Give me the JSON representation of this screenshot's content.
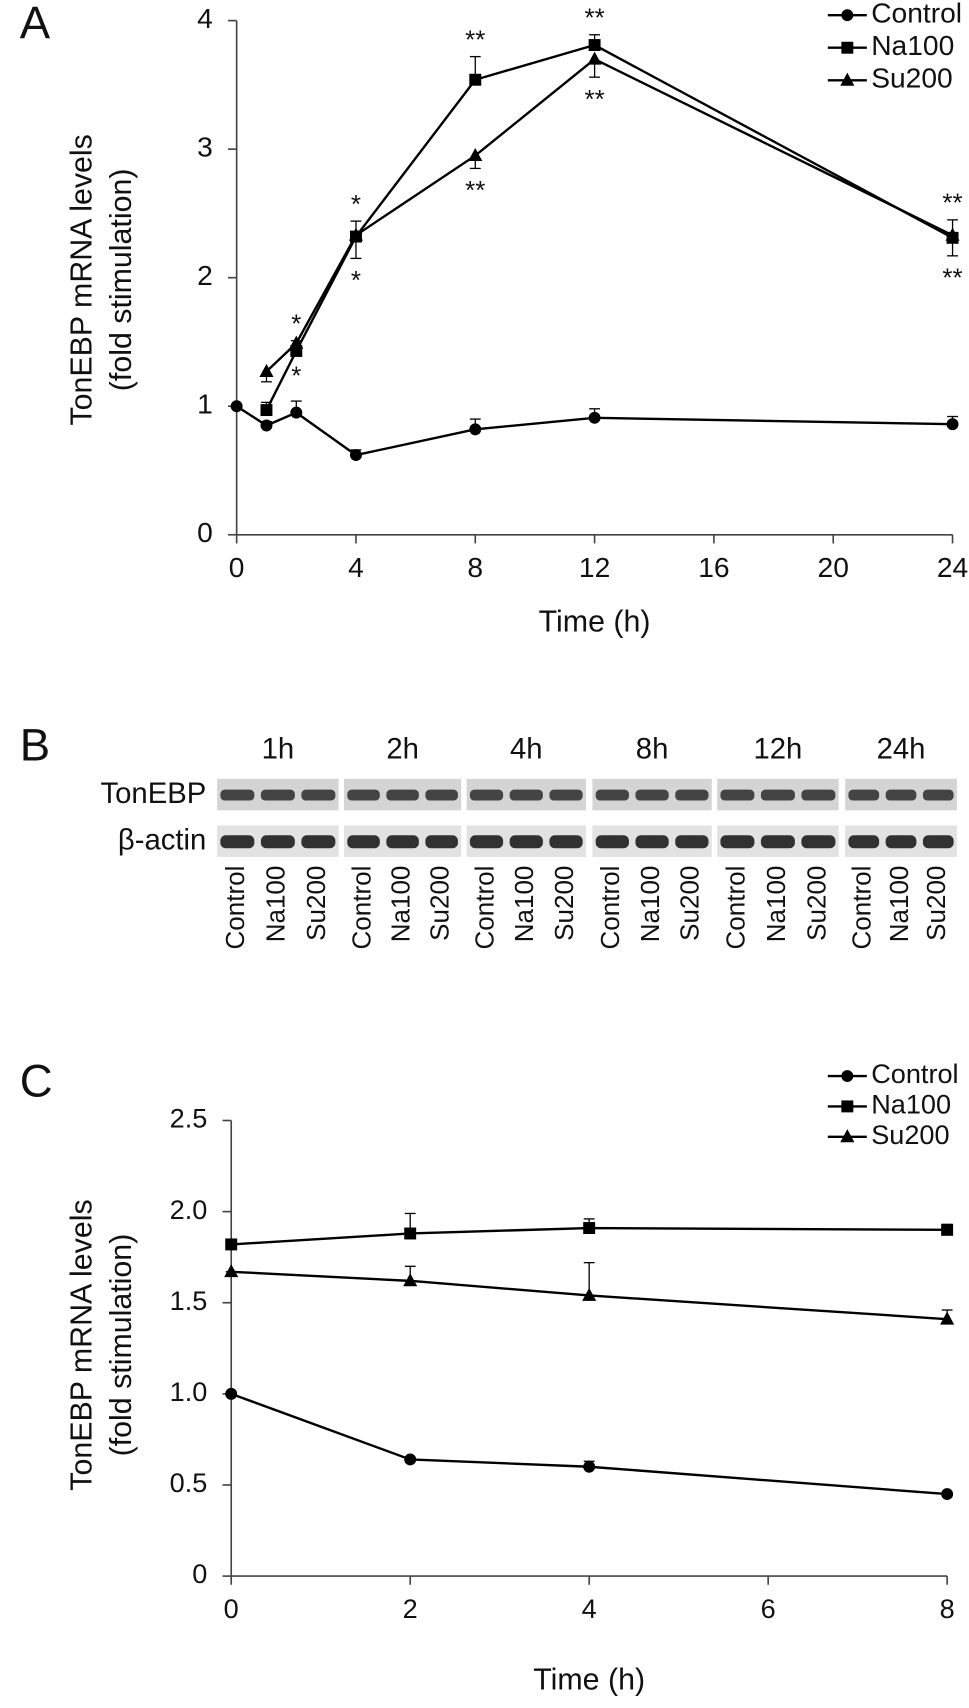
{
  "chart_data": [
    {
      "type": "line",
      "panel_label": "A",
      "x_label": "Time (h)",
      "y_label": [
        "TonEBP mRNA levels",
        "(fold stimulation)"
      ],
      "xlim": [
        0,
        24
      ],
      "ylim": [
        0,
        4
      ],
      "xticks": [
        0,
        4,
        8,
        12,
        16,
        20,
        24
      ],
      "yticks": [
        0,
        1,
        2,
        3,
        4
      ],
      "legend": "top-right",
      "series": [
        {
          "name": "Control",
          "color": "#000000",
          "marker": "circle",
          "x": [
            0,
            1,
            2,
            4,
            8,
            12,
            24
          ],
          "values": [
            1.0,
            0.85,
            0.95,
            0.62,
            0.82,
            0.91,
            0.86
          ],
          "errors": [
            0,
            0.03,
            0.09,
            0.04,
            0.08,
            0.07,
            0.06
          ],
          "error_side": "up",
          "point_labels": [
            null,
            null,
            null,
            null,
            null,
            null,
            null
          ],
          "label_side": "above"
        },
        {
          "name": "Na100",
          "color": "#000000",
          "marker": "square",
          "x": [
            1,
            2,
            4,
            8,
            12,
            24
          ],
          "values": [
            0.97,
            1.43,
            2.32,
            3.54,
            3.81,
            2.31
          ],
          "errors": [
            0.06,
            0.08,
            0.12,
            0.18,
            0.08,
            0.14
          ],
          "error_side": "up",
          "point_labels": [
            null,
            "*",
            "*",
            "**",
            "**",
            "**"
          ],
          "label_side": "above"
        },
        {
          "name": "Su200",
          "color": "#000000",
          "marker": "triangle",
          "x": [
            1,
            2,
            4,
            8,
            12,
            24
          ],
          "values": [
            1.27,
            1.49,
            2.33,
            2.95,
            3.7,
            2.33
          ],
          "errors": [
            0.08,
            0.08,
            0.18,
            0.1,
            0.14,
            0.16
          ],
          "error_side": "down",
          "point_labels": [
            null,
            "*",
            "*",
            "**",
            "**",
            "**"
          ],
          "label_side": "below"
        }
      ]
    },
    {
      "type": "line",
      "panel_label": "C",
      "x_label": "Time (h)",
      "y_label": [
        "TonEBP mRNA levels",
        "(fold stimulation)"
      ],
      "xlim": [
        0,
        8
      ],
      "ylim": [
        0,
        2.5
      ],
      "xticks": [
        0,
        2,
        4,
        6,
        8
      ],
      "yticks": [
        0,
        0.5,
        {
          "value": 1,
          "label": "1.0"
        },
        1.5,
        {
          "value": 2,
          "label": "2.0"
        },
        2.5
      ],
      "legend": "top-right",
      "series": [
        {
          "name": "Control",
          "color": "#000000",
          "marker": "circle",
          "x": [
            0,
            2,
            4,
            8
          ],
          "values": [
            1.0,
            0.64,
            0.6,
            0.45
          ],
          "errors": [
            0,
            0.01,
            0.03,
            0
          ],
          "error_side": "up",
          "point_labels": [
            null,
            null,
            null,
            null
          ],
          "label_side": "above"
        },
        {
          "name": "Na100",
          "color": "#000000",
          "marker": "square",
          "x": [
            0,
            2,
            4,
            8
          ],
          "values": [
            1.82,
            1.88,
            1.91,
            1.9
          ],
          "errors": [
            0,
            0.11,
            0.05,
            0.03
          ],
          "error_side": "up",
          "point_labels": [
            null,
            null,
            null,
            null
          ],
          "label_side": "above"
        },
        {
          "name": "Su200",
          "color": "#000000",
          "marker": "triangle",
          "x": [
            0,
            2,
            4,
            8
          ],
          "values": [
            1.67,
            1.62,
            1.54,
            1.41
          ],
          "errors": [
            0,
            0.08,
            0.18,
            0.05
          ],
          "error_side": "up",
          "point_labels": [
            null,
            null,
            null,
            null
          ],
          "label_side": "above"
        }
      ]
    }
  ],
  "blot": {
    "panel_label": "B",
    "row_labels": [
      "TonEBP",
      "β-actin"
    ],
    "groups": [
      {
        "time": "1h",
        "lanes": [
          "Control",
          "Na100",
          "Su200"
        ]
      },
      {
        "time": "2h",
        "lanes": [
          "Control",
          "Na100",
          "Su200"
        ]
      },
      {
        "time": "4h",
        "lanes": [
          "Control",
          "Na100",
          "Su200"
        ]
      },
      {
        "time": "8h",
        "lanes": [
          "Control",
          "Na100",
          "Su200"
        ]
      },
      {
        "time": "12h",
        "lanes": [
          "Control",
          "Na100",
          "Su200"
        ]
      },
      {
        "time": "24h",
        "lanes": [
          "Control",
          "Na100",
          "Su200"
        ]
      }
    ]
  }
}
